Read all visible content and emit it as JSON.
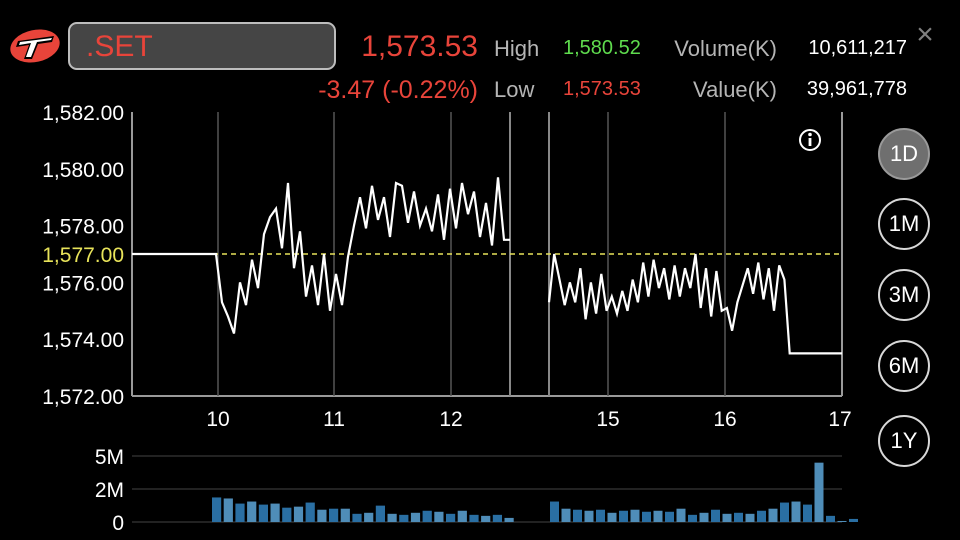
{
  "symbol": ".SET",
  "last_price": "1,573.53",
  "change": "-3.47 (-0.22%)",
  "high": {
    "label": "High",
    "value": "1,580.52"
  },
  "low": {
    "label": "Low",
    "value": "1,573.53"
  },
  "volume": {
    "label": "Volume(K)",
    "value": "10,611,217"
  },
  "value": {
    "label": "Value(K)",
    "value": "39,961,778"
  },
  "close_icon": "close-icon",
  "info_icon": "info-icon",
  "colors": {
    "accent_red": "#e8443a",
    "accent_green": "#5fdc4e",
    "reference_line": "#e8e35a",
    "volume_bar": "#2a6fa3"
  },
  "ranges": [
    {
      "label": "1D",
      "active": true
    },
    {
      "label": "1M",
      "active": false
    },
    {
      "label": "3M",
      "active": false
    },
    {
      "label": "6M",
      "active": false
    },
    {
      "label": "1Y",
      "active": false
    }
  ],
  "chart_data": [
    {
      "type": "line",
      "ylim": [
        1572,
        1582
      ],
      "y_ticks": [
        "1,582.00",
        "1,580.00",
        "1,578.00",
        "1,576.00",
        "1,574.00",
        "1,572.00"
      ],
      "x_ticks": [
        "10",
        "11",
        "12",
        "15",
        "16",
        "17"
      ],
      "reference_value": 1577.0,
      "reference_label": "1,577.00",
      "morning_session": [
        1577.0,
        1577.0,
        1577.0,
        1577.0,
        1577.0,
        1577.0,
        1577.0,
        1577.0,
        1577.0,
        1577.0,
        1577.0,
        1577.0,
        1577.0,
        1577.0,
        1577.0,
        1575.3,
        1574.8,
        1574.2,
        1576.0,
        1575.2,
        1576.8,
        1575.8,
        1577.7,
        1578.3,
        1578.6,
        1577.2,
        1579.5,
        1576.5,
        1577.8,
        1575.5,
        1576.6,
        1575.2,
        1577.0,
        1575.0,
        1576.3,
        1575.2,
        1576.9,
        1578.0,
        1579.0,
        1577.9,
        1579.4,
        1578.2,
        1579.0,
        1577.6,
        1579.5,
        1579.4,
        1578.1,
        1579.2,
        1578.0,
        1578.6,
        1577.8,
        1579.1,
        1577.5,
        1579.3,
        1577.9,
        1579.5,
        1578.4,
        1579.2,
        1577.6,
        1578.8,
        1577.3,
        1579.7,
        1577.5,
        1577.5
      ],
      "afternoon_session": [
        1575.3,
        1577.0,
        1576.1,
        1575.2,
        1576.0,
        1575.3,
        1576.5,
        1574.7,
        1576.0,
        1574.9,
        1576.3,
        1575.0,
        1575.5,
        1574.9,
        1575.7,
        1575.0,
        1576.1,
        1575.3,
        1576.7,
        1575.5,
        1576.8,
        1575.8,
        1576.5,
        1575.4,
        1576.6,
        1575.5,
        1576.5,
        1575.8,
        1577.0,
        1575.1,
        1576.5,
        1574.8,
        1576.4,
        1575.0,
        1575.1,
        1574.3,
        1575.3,
        1575.9,
        1576.5,
        1575.6,
        1576.7,
        1575.4,
        1576.5,
        1575.0,
        1576.6,
        1576.1,
        1573.5,
        1573.5,
        1573.5,
        1573.5,
        1573.5,
        1573.5,
        1573.5,
        1573.5,
        1573.5,
        1573.5,
        1573.5
      ]
    },
    {
      "type": "bar",
      "y_ticks": [
        "5M",
        "2M",
        "0"
      ],
      "ylim": [
        0,
        5
      ],
      "morning_values": [
        1.2,
        1.15,
        0.9,
        1.0,
        0.85,
        0.9,
        0.7,
        0.75,
        0.95,
        0.6,
        0.65,
        0.65,
        0.4,
        0.45,
        0.8,
        0.4,
        0.35,
        0.45,
        0.55,
        0.5,
        0.4,
        0.55,
        0.35,
        0.3,
        0.35,
        0.2
      ],
      "afternoon_values": [
        1.0,
        0.65,
        0.6,
        0.55,
        0.6,
        0.45,
        0.55,
        0.6,
        0.5,
        0.55,
        0.5,
        0.65,
        0.35,
        0.45,
        0.6,
        0.4,
        0.45,
        0.4,
        0.55,
        0.65,
        0.95,
        1.0,
        0.85,
        2.9,
        0.3,
        0.05,
        0.15
      ]
    }
  ]
}
